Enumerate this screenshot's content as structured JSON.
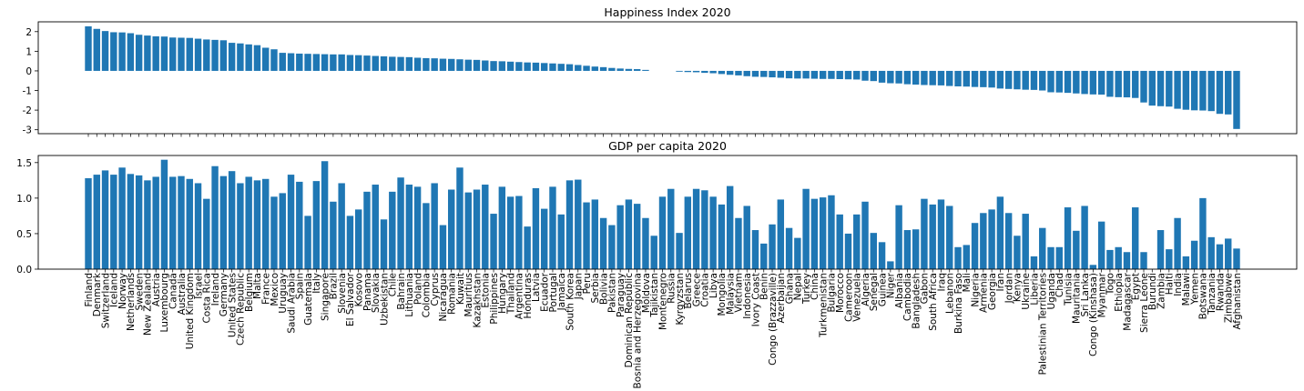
{
  "chart_data": {
    "type": "bar",
    "bar_color": "#1f77b4",
    "categories": [
      "Finland",
      "Denmark",
      "Switzerland",
      "Iceland",
      "Norway",
      "Netherlands",
      "Sweden",
      "New Zealand",
      "Austria",
      "Luxembourg",
      "Canada",
      "Australia",
      "United Kingdom",
      "Israel",
      "Costa Rica",
      "Ireland",
      "Germany",
      "United States",
      "Czech Republic",
      "Belgium",
      "Malta",
      "France",
      "Mexico",
      "Uruguay",
      "Saudi Arabia",
      "Spain",
      "Guatemala",
      "Italy",
      "Singapore",
      "Brazil",
      "Slovenia",
      "El Salvador",
      "Kosovo",
      "Panama",
      "Slovakia",
      "Uzbekistan",
      "Chile",
      "Bahrain",
      "Lithuania",
      "Poland",
      "Colombia",
      "Cyprus",
      "Nicaragua",
      "Romania",
      "Kuwait",
      "Mauritius",
      "Kazakhstan",
      "Estonia",
      "Philippines",
      "Hungary",
      "Thailand",
      "Argentina",
      "Honduras",
      "Latvia",
      "Ecuador",
      "Portugal",
      "Jamaica",
      "South Korea",
      "Japan",
      "Peru",
      "Serbia",
      "Bolivia",
      "Pakistan",
      "Paraguay",
      "Dominican Republic",
      "Bosnia and Herzegovina",
      "Moldova",
      "Tajikistan",
      "Montenegro",
      "Russia",
      "Kyrgyzstan",
      "Belarus",
      "Greece",
      "Croatia",
      "Libya",
      "Mongolia",
      "Malaysia",
      "Vietnam",
      "Indonesia",
      "Ivory Coast",
      "Benin",
      "Congo (Brazzaville)",
      "Azerbaijan",
      "Ghana",
      "Nepal",
      "Turkey",
      "China",
      "Turkmenistan",
      "Bulgaria",
      "Morocco",
      "Cameroon",
      "Venezuela",
      "Algeria",
      "Senegal",
      "Guinea",
      "Niger",
      "Albania",
      "Cambodia",
      "Bangladesh",
      "Gabon",
      "South Africa",
      "Iraq",
      "Lebanon",
      "Burkina Faso",
      "Mali",
      "Nigeria",
      "Armenia",
      "Georgia",
      "Iran",
      "Jordan",
      "Kenya",
      "Ukraine",
      "Liberia",
      "Palestinian Territories",
      "Uganda",
      "Chad",
      "Tunisia",
      "Mauritania",
      "Sri Lanka",
      "Congo (Kinshasa)",
      "Myanmar",
      "Togo",
      "Ethiopia",
      "Madagascar",
      "Egypt",
      "Sierra Leone",
      "Burundi",
      "Zambia",
      "Haiti",
      "India",
      "Malawi",
      "Yemen",
      "Botswana",
      "Tanzania",
      "Rwanda",
      "Zimbabwe",
      "Afghanistan"
    ],
    "charts": [
      {
        "title": "Happiness Index 2020",
        "ylim": [
          -3.2,
          2.5
        ],
        "yticks": [
          -3,
          -2,
          -1,
          0,
          1,
          2
        ],
        "values": [
          2.27,
          2.14,
          2.03,
          1.97,
          1.96,
          1.92,
          1.84,
          1.8,
          1.76,
          1.75,
          1.7,
          1.69,
          1.68,
          1.64,
          1.6,
          1.58,
          1.56,
          1.43,
          1.4,
          1.35,
          1.31,
          1.18,
          1.1,
          0.92,
          0.9,
          0.88,
          0.87,
          0.86,
          0.85,
          0.84,
          0.84,
          0.81,
          0.8,
          0.78,
          0.76,
          0.74,
          0.72,
          0.71,
          0.7,
          0.67,
          0.65,
          0.64,
          0.62,
          0.61,
          0.59,
          0.57,
          0.56,
          0.53,
          0.5,
          0.49,
          0.47,
          0.45,
          0.43,
          0.42,
          0.4,
          0.38,
          0.36,
          0.34,
          0.3,
          0.26,
          0.22,
          0.19,
          0.15,
          0.12,
          0.1,
          0.09,
          0.05,
          0.0,
          0.0,
          0.0,
          -0.04,
          -0.06,
          -0.07,
          -0.1,
          -0.12,
          -0.16,
          -0.2,
          -0.23,
          -0.27,
          -0.3,
          -0.31,
          -0.33,
          -0.35,
          -0.38,
          -0.39,
          -0.39,
          -0.4,
          -0.41,
          -0.41,
          -0.42,
          -0.43,
          -0.44,
          -0.5,
          -0.52,
          -0.6,
          -0.63,
          -0.64,
          -0.68,
          -0.7,
          -0.72,
          -0.73,
          -0.74,
          -0.77,
          -0.79,
          -0.8,
          -0.82,
          -0.83,
          -0.85,
          -0.9,
          -0.92,
          -0.94,
          -0.96,
          -0.97,
          -1.0,
          -1.09,
          -1.1,
          -1.12,
          -1.15,
          -1.18,
          -1.2,
          -1.21,
          -1.32,
          -1.34,
          -1.35,
          -1.38,
          -1.61,
          -1.77,
          -1.8,
          -1.82,
          -1.93,
          -1.98,
          -2.01,
          -2.02,
          -2.05,
          -2.19,
          -2.22,
          -2.96
        ]
      },
      {
        "title": "GDP per capita 2020",
        "ylim": [
          0,
          1.6
        ],
        "yticks": [
          0.0,
          0.5,
          1.0,
          1.5
        ],
        "values": [
          1.28,
          1.33,
          1.39,
          1.33,
          1.43,
          1.34,
          1.32,
          1.25,
          1.3,
          1.54,
          1.3,
          1.31,
          1.27,
          1.21,
          0.99,
          1.45,
          1.31,
          1.38,
          1.21,
          1.3,
          1.25,
          1.27,
          1.02,
          1.07,
          1.33,
          1.23,
          0.75,
          1.24,
          1.52,
          0.95,
          1.21,
          0.75,
          0.84,
          1.09,
          1.19,
          0.7,
          1.09,
          1.29,
          1.19,
          1.16,
          0.93,
          1.21,
          0.62,
          1.12,
          1.43,
          1.08,
          1.12,
          1.19,
          0.78,
          1.16,
          1.02,
          1.03,
          0.6,
          1.14,
          0.85,
          1.16,
          0.77,
          1.25,
          1.26,
          0.94,
          0.98,
          0.72,
          0.62,
          0.9,
          0.98,
          0.92,
          0.72,
          0.47,
          1.02,
          1.13,
          0.51,
          1.02,
          1.13,
          1.11,
          1.02,
          0.91,
          1.17,
          0.72,
          0.89,
          0.55,
          0.36,
          0.63,
          0.98,
          0.58,
          0.44,
          1.13,
          0.99,
          1.01,
          1.04,
          0.77,
          0.5,
          0.77,
          0.95,
          0.51,
          0.38,
          0.11,
          0.9,
          0.55,
          0.56,
          0.99,
          0.91,
          0.98,
          0.89,
          0.31,
          0.34,
          0.65,
          0.79,
          0.84,
          1.02,
          0.79,
          0.47,
          0.78,
          0.18,
          0.58,
          0.31,
          0.31,
          0.87,
          0.54,
          0.89,
          0.06,
          0.67,
          0.27,
          0.31,
          0.24,
          0.87,
          0.24,
          0.0,
          0.55,
          0.28,
          0.72,
          0.18,
          0.4,
          1.0,
          0.45,
          0.35,
          0.43,
          0.29
        ]
      }
    ]
  }
}
